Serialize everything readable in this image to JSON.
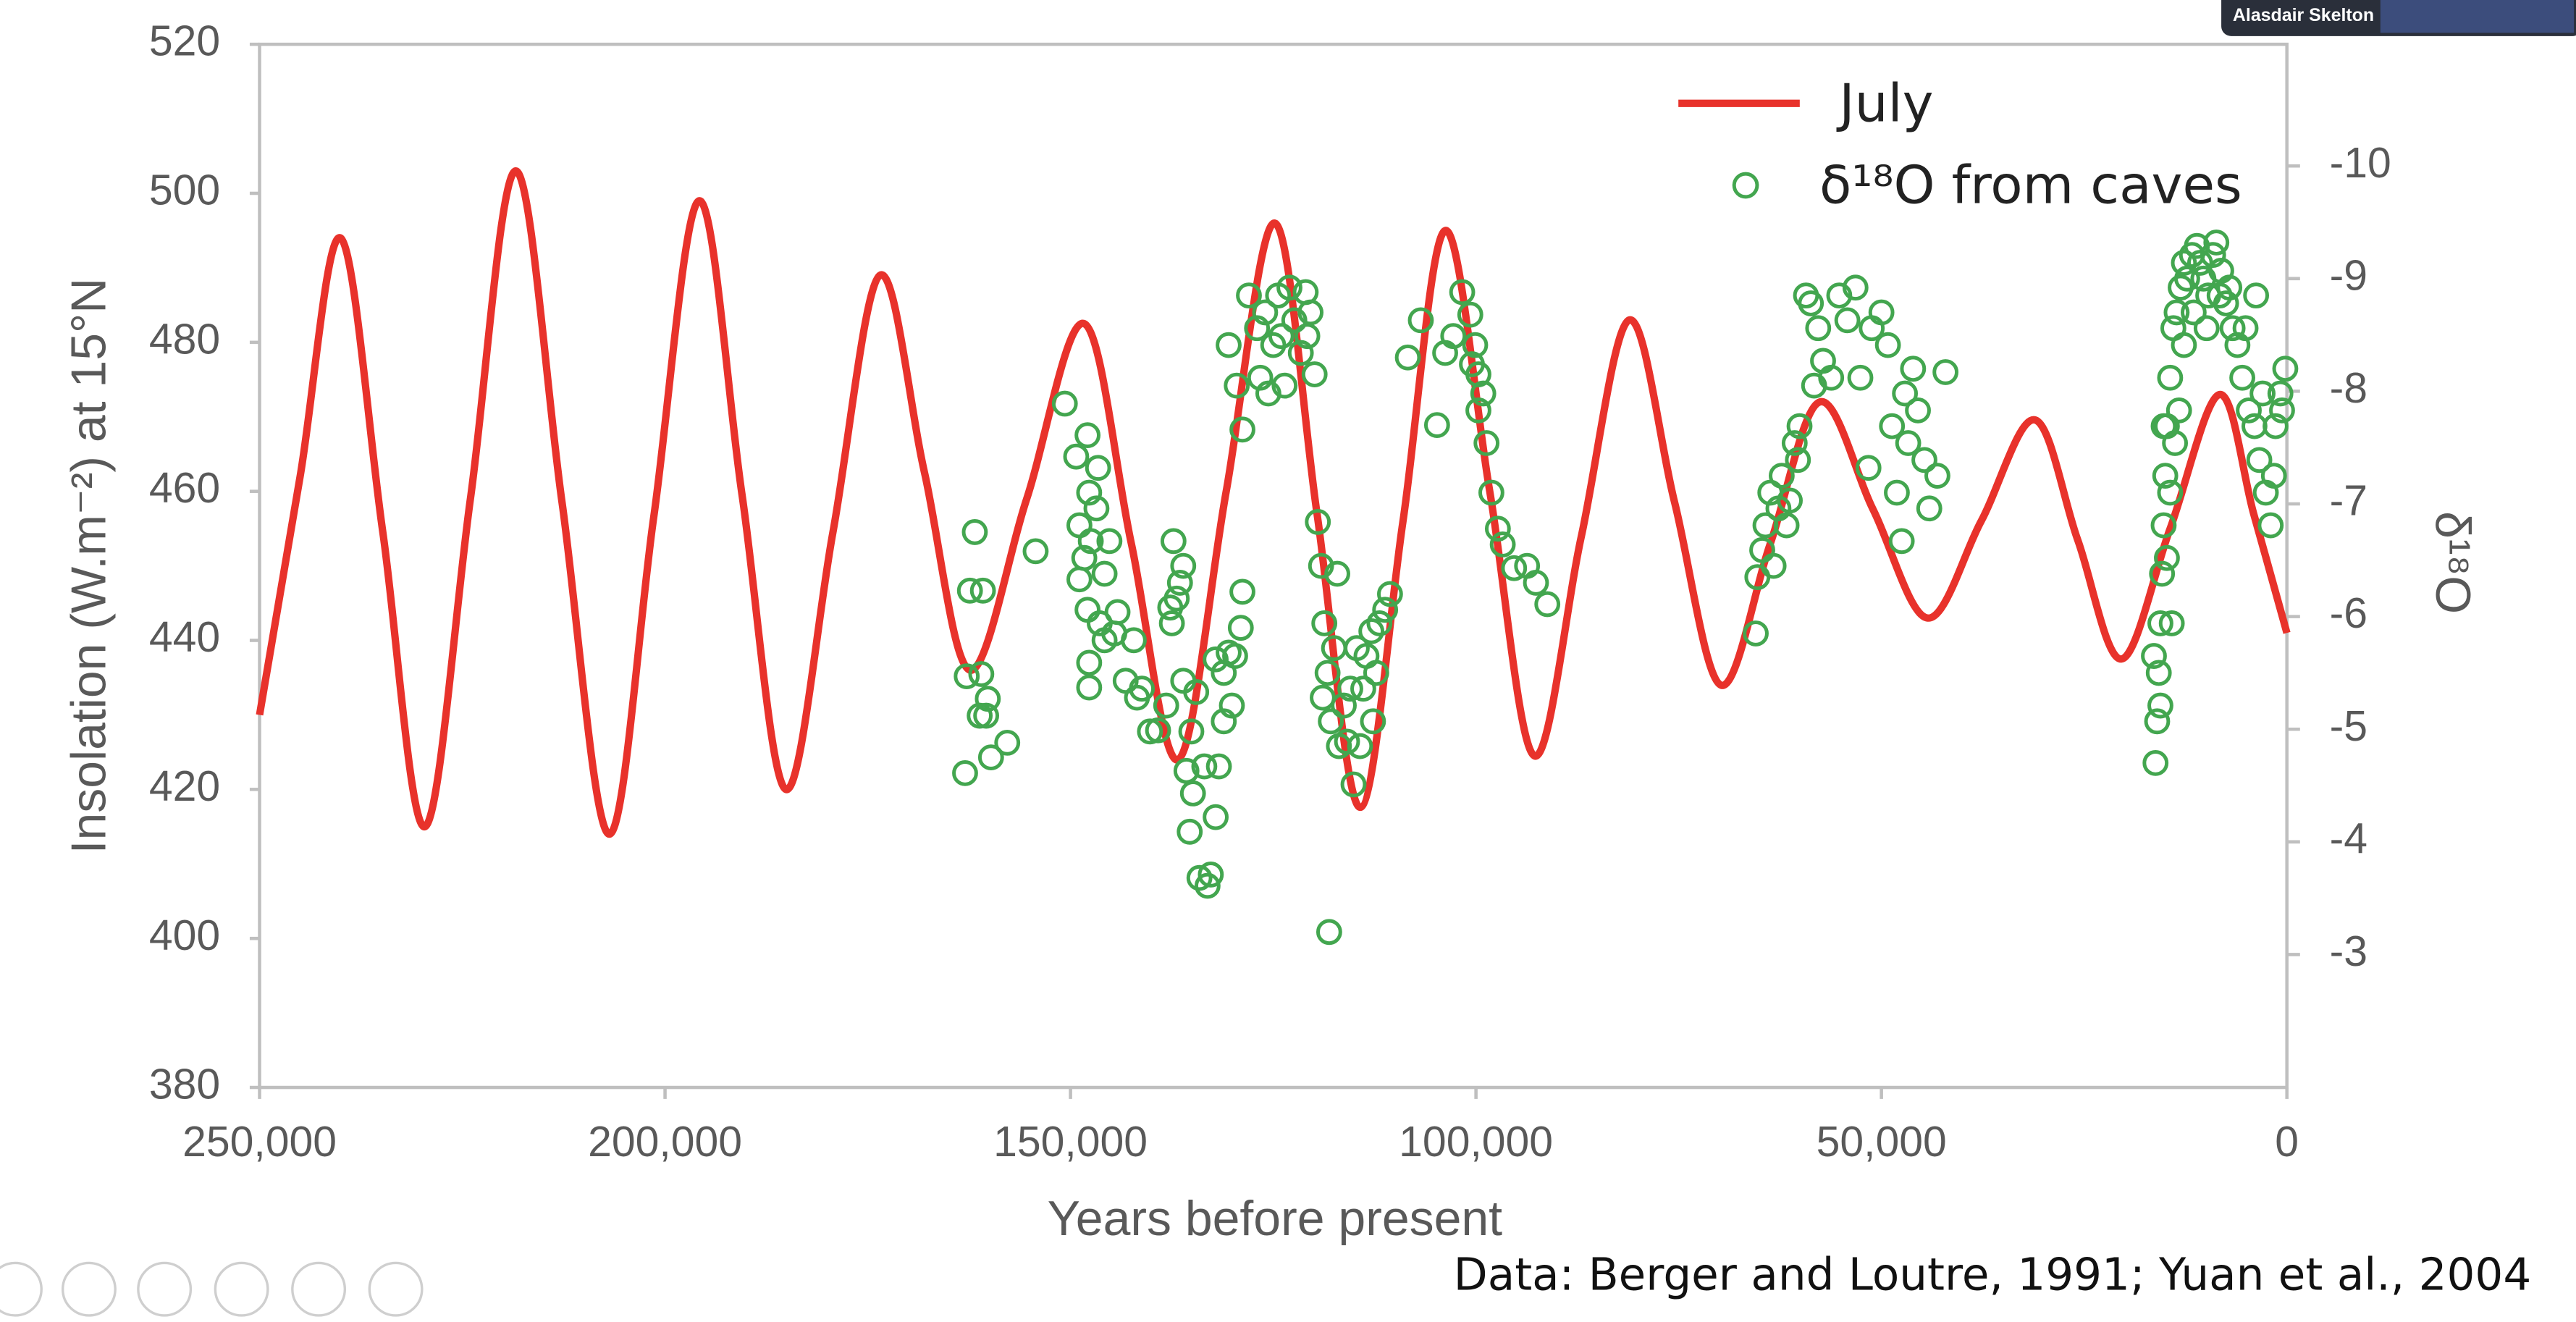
{
  "meeting": {
    "participant": "Alasdair Skelton"
  },
  "chart_data": {
    "type": "line",
    "source": "Data: Berger and Loutre, 1991; Yuan et al., 2004",
    "x_label": "Years before present",
    "y_label": "Insolation (W.m⁻²) at 15°N",
    "y2_label": "δ¹⁸O",
    "xlim": [
      250000,
      0
    ],
    "xticks": [
      {
        "value": 250000,
        "label": "250,000"
      },
      {
        "value": 200000,
        "label": "200,000"
      },
      {
        "value": 150000,
        "label": "150,000"
      },
      {
        "value": 100000,
        "label": "100,000"
      },
      {
        "value": 50000,
        "label": "50,000"
      },
      0
    ],
    "ylim": [
      380,
      520
    ],
    "yticks": [
      380,
      400,
      420,
      440,
      460,
      480,
      500,
      520
    ],
    "y2lim": [
      -1.82,
      -11.08
    ],
    "y2ticks": [
      -3,
      -4,
      -5,
      -6,
      -7,
      -8,
      -9,
      -10
    ],
    "legend": "upper right",
    "series": [
      {
        "name": "July",
        "type": "line",
        "color": "#e8322b",
        "x": [
          250000,
          245000,
          240000,
          234800,
          229600,
          224000,
          218400,
          212700,
          206900,
          201400,
          195800,
          190500,
          185100,
          179300,
          173500,
          168000,
          162400,
          155400,
          148300,
          142500,
          136700,
          130800,
          124800,
          119600,
          114300,
          109000,
          103800,
          98300,
          92800,
          87000,
          81100,
          75500,
          69800,
          63700,
          57600,
          51000,
          44300,
          37700,
          31100,
          25800,
          20400,
          14400,
          8300,
          4100,
          0
        ],
        "values": [
          430,
          462,
          494,
          454.5,
          415,
          459,
          503,
          458.5,
          414,
          456.5,
          499,
          459.5,
          420,
          454.5,
          489,
          462.5,
          436,
          459,
          482.5,
          453,
          424,
          460,
          496,
          457,
          417.6,
          456,
          495,
          460,
          424.5,
          454,
          483,
          458.5,
          434,
          453,
          472,
          457.5,
          443,
          456,
          469.6,
          453.5,
          437.5,
          455,
          473,
          457,
          441
        ]
      },
      {
        "name": "δ¹⁸O from caves",
        "type": "scatter",
        "color": "#43a64f",
        "axis": "y2",
        "x": [
          163000,
          161800,
          161200,
          162400,
          161000,
          160400,
          159800,
          157800,
          160800,
          162800,
          160200,
          154300,
          150700,
          149300,
          147900,
          148900,
          147700,
          148300,
          146800,
          148900,
          147900,
          147700,
          147700,
          146400,
          145800,
          145200,
          144200,
          143200,
          142200,
          141200,
          140200,
          146600,
          147500,
          145800,
          144600,
          141800,
          139200,
          138200,
          137300,
          136500,
          137500,
          136100,
          135100,
          135700,
          134900,
          135300,
          134100,
          132700,
          133100,
          132100,
          133500,
          131700,
          131100,
          130500,
          129700,
          130100,
          129000,
          128800,
          131100,
          132100,
          136900,
          137700,
          136100,
          134500,
          130500,
          129500,
          128800,
          128000,
          127000,
          126600,
          126000,
          125600,
          125000,
          124400,
          124000,
          123600,
          123000,
          122400,
          121600,
          121000,
          120400,
          119900,
          120800,
          119500,
          119100,
          118700,
          118300,
          117900,
          118900,
          117500,
          116900,
          116300,
          115900,
          115100,
          114300,
          113900,
          113500,
          112900,
          112300,
          111900,
          111200,
          110600,
          112700,
          114700,
          115500,
          118100,
          117100,
          108400,
          106800,
          104800,
          103800,
          102800,
          101700,
          100700,
          100100,
          99700,
          99100,
          98700,
          98100,
          97300,
          96700,
          95300,
          93700,
          92600,
          91200,
          99700,
          100500,
          65500,
          65300,
          64700,
          64300,
          63700,
          63300,
          62700,
          62300,
          61300,
          60700,
          60100,
          59300,
          58700,
          57800,
          57200,
          56200,
          55200,
          54200,
          53200,
          52600,
          51600,
          51200,
          50000,
          49200,
          48700,
          48100,
          47500,
          46700,
          46100,
          45500,
          44700,
          44100,
          43100,
          42100,
          47100,
          58300,
          60300,
          61700,
          16200,
          16000,
          15800,
          15600,
          15400,
          15200,
          15000,
          14800,
          14400,
          14000,
          13600,
          13100,
          12700,
          12300,
          11700,
          11100,
          10700,
          10300,
          9700,
          9100,
          8700,
          8100,
          7500,
          6700,
          6100,
          5500,
          4700,
          4000,
          3400,
          2600,
          2000,
          1400,
          800,
          200,
          3000,
          1600,
          14800,
          14400,
          13800,
          16400,
          15600,
          15200,
          14200,
          13300,
          12700,
          11500,
          9900,
          8300,
          7100,
          5100,
          3800,
          600
        ],
        "values": [
          -4.61,
          -6.75,
          -5.12,
          -6.23,
          -5.49,
          -5.12,
          -4.75,
          -4.88,
          -6.23,
          -5.47,
          -5.27,
          -6.58,
          -7.89,
          -7.42,
          -7.61,
          -6.81,
          -7.1,
          -6.52,
          -6.96,
          -6.33,
          -6.06,
          -5.59,
          -5.37,
          -5.94,
          -5.79,
          -6.67,
          -6.04,
          -5.43,
          -5.79,
          -5.36,
          -4.98,
          -7.32,
          -6.67,
          -6.38,
          -5.85,
          -5.28,
          -4.99,
          -5.21,
          -6.67,
          -6.3,
          -5.94,
          -5.43,
          -4.98,
          -4.63,
          -4.43,
          -4.09,
          -3.68,
          -3.71,
          -3.61,
          -4.22,
          -4.67,
          -4.67,
          -5.07,
          -5.68,
          -5.65,
          -5.21,
          -5.9,
          -6.22,
          -5.5,
          -5.62,
          -6.16,
          -6.08,
          -6.45,
          -5.33,
          -8.41,
          -8.05,
          -7.66,
          -8.85,
          -8.56,
          -8.12,
          -8.7,
          -7.98,
          -8.41,
          -8.85,
          -8.49,
          -8.05,
          -8.92,
          -8.63,
          -8.34,
          -8.88,
          -8.7,
          -8.15,
          -8.49,
          -6.84,
          -6.45,
          -5.94,
          -5.5,
          -5.07,
          -5.28,
          -5.72,
          -4.85,
          -5.21,
          -4.89,
          -4.51,
          -4.85,
          -5.36,
          -5.65,
          -5.87,
          -5.5,
          -5.94,
          -6.06,
          -6.2,
          -5.07,
          -5.72,
          -5.36,
          -3.2,
          -6.38,
          -8.3,
          -8.63,
          -7.7,
          -8.34,
          -8.49,
          -8.88,
          -8.68,
          -8.41,
          -8.15,
          -7.98,
          -7.54,
          -7.1,
          -6.78,
          -6.64,
          -6.43,
          -6.45,
          -6.3,
          -6.11,
          -7.83,
          -8.24,
          -5.85,
          -6.35,
          -6.59,
          -6.81,
          -7.1,
          -6.45,
          -6.96,
          -7.25,
          -7.03,
          -7.54,
          -7.69,
          -8.85,
          -8.78,
          -8.56,
          -8.27,
          -8.12,
          -8.85,
          -8.63,
          -8.92,
          -8.12,
          -7.32,
          -8.56,
          -8.7,
          -8.41,
          -7.69,
          -7.1,
          -6.67,
          -7.54,
          -8.2,
          -7.83,
          -7.39,
          -6.96,
          -7.25,
          -8.17,
          -7.98,
          -8.05,
          -7.39,
          -6.81,
          -4.7,
          -5.07,
          -5.5,
          -5.94,
          -6.38,
          -6.81,
          -7.25,
          -7.69,
          -8.12,
          -8.56,
          -8.7,
          -8.92,
          -9.14,
          -9.0,
          -9.21,
          -9.29,
          -9.14,
          -9.0,
          -8.85,
          -9.21,
          -9.32,
          -9.07,
          -8.78,
          -8.56,
          -8.41,
          -8.12,
          -7.83,
          -7.69,
          -7.39,
          -7.1,
          -6.81,
          -7.69,
          -7.98,
          -8.2,
          -7.98,
          -7.25,
          -6.52,
          -7.1,
          -7.54,
          -5.65,
          -5.21,
          -7.69,
          -5.94,
          -7.83,
          -8.41,
          -8.7,
          -8.56,
          -8.85,
          -8.92,
          -8.56,
          -8.85,
          -7.83
        ]
      }
    ]
  }
}
